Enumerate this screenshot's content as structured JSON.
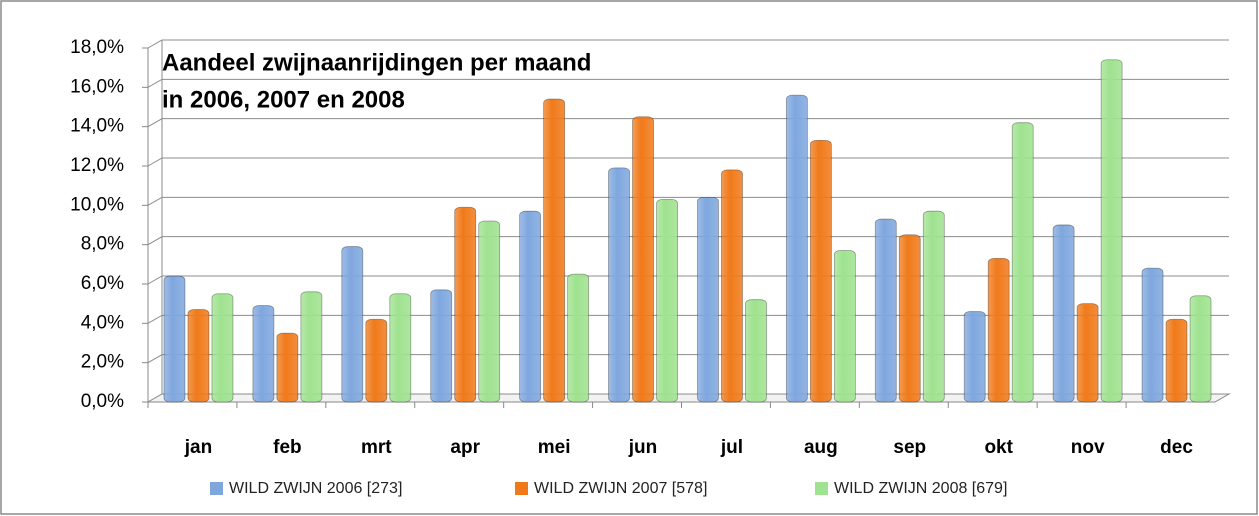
{
  "chart_data": {
    "type": "bar",
    "title_lines": [
      "Aandeel zwijnaanrijdingen per maand",
      "in 2006, 2007 en 2008"
    ],
    "categories": [
      "jan",
      "feb",
      "mrt",
      "apr",
      "mei",
      "jun",
      "jul",
      "aug",
      "sep",
      "okt",
      "nov",
      "dec"
    ],
    "series": [
      {
        "name": "WILD ZWIJN 2006 [273]",
        "color": "#7fa7de",
        "values": [
          6.2,
          4.7,
          7.7,
          5.5,
          9.5,
          11.7,
          10.2,
          15.4,
          9.1,
          4.4,
          8.8,
          6.6
        ]
      },
      {
        "name": "WILD ZWIJN 2007 [578]",
        "color": "#f07a1a",
        "values": [
          4.5,
          3.3,
          4.0,
          9.7,
          15.2,
          14.3,
          11.6,
          13.1,
          8.3,
          7.1,
          4.8,
          4.0
        ]
      },
      {
        "name": "WILD ZWIJN 2008 [679]",
        "color": "#9fe28f",
        "values": [
          5.3,
          5.4,
          5.3,
          9.0,
          6.3,
          10.1,
          5.0,
          7.5,
          9.5,
          14.0,
          17.2,
          5.2
        ]
      }
    ],
    "ylim": [
      0,
      18
    ],
    "yticks": [
      {
        "value": 0,
        "label": "0,0%"
      },
      {
        "value": 2,
        "label": "2,0%"
      },
      {
        "value": 4,
        "label": "4,0%"
      },
      {
        "value": 6,
        "label": "6,0%"
      },
      {
        "value": 8,
        "label": "8,0%"
      },
      {
        "value": 10,
        "label": "10,0%"
      },
      {
        "value": 12,
        "label": "12,0%"
      },
      {
        "value": 14,
        "label": "14,0%"
      },
      {
        "value": 16,
        "label": "16,0%"
      },
      {
        "value": 18,
        "label": "18,0%"
      }
    ],
    "grid": true,
    "legend": "bottom"
  }
}
